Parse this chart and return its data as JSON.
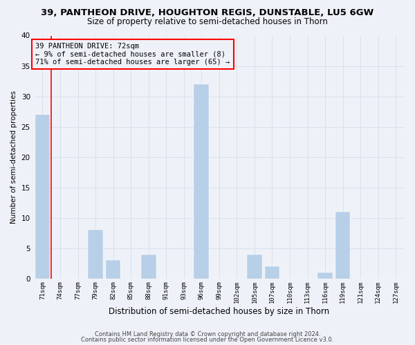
{
  "title1": "39, PANTHEON DRIVE, HOUGHTON REGIS, DUNSTABLE, LU5 6GW",
  "title2": "Size of property relative to semi-detached houses in Thorn",
  "xlabel": "Distribution of semi-detached houses by size in Thorn",
  "ylabel": "Number of semi-detached properties",
  "footer1": "Contains HM Land Registry data © Crown copyright and database right 2024.",
  "footer2": "Contains public sector information licensed under the Open Government Licence v3.0.",
  "annotation_line1": "39 PANTHEON DRIVE: 72sqm",
  "annotation_line2": "← 9% of semi-detached houses are smaller (8)",
  "annotation_line3": "71% of semi-detached houses are larger (65) →",
  "categories": [
    "71sqm",
    "74sqm",
    "77sqm",
    "79sqm",
    "82sqm",
    "85sqm",
    "88sqm",
    "91sqm",
    "93sqm",
    "96sqm",
    "99sqm",
    "102sqm",
    "105sqm",
    "107sqm",
    "110sqm",
    "113sqm",
    "116sqm",
    "119sqm",
    "121sqm",
    "124sqm",
    "127sqm"
  ],
  "values": [
    27,
    0,
    0,
    8,
    3,
    0,
    4,
    0,
    0,
    32,
    0,
    0,
    4,
    2,
    0,
    0,
    1,
    11,
    0,
    0,
    0
  ],
  "bar_color": "#b8cfe8",
  "grid_color": "#d0d8e8",
  "background_color": "#eef2f8",
  "ylim": [
    0,
    40
  ],
  "yticks": [
    0,
    5,
    10,
    15,
    20,
    25,
    30,
    35,
    40
  ],
  "title1_fontsize": 9.5,
  "title2_fontsize": 8.5,
  "annot_fontsize": 7.5,
  "xlabel_fontsize": 8.5,
  "ylabel_fontsize": 7.5,
  "xtick_fontsize": 6.5,
  "ytick_fontsize": 7.5,
  "footer_fontsize": 6.0
}
